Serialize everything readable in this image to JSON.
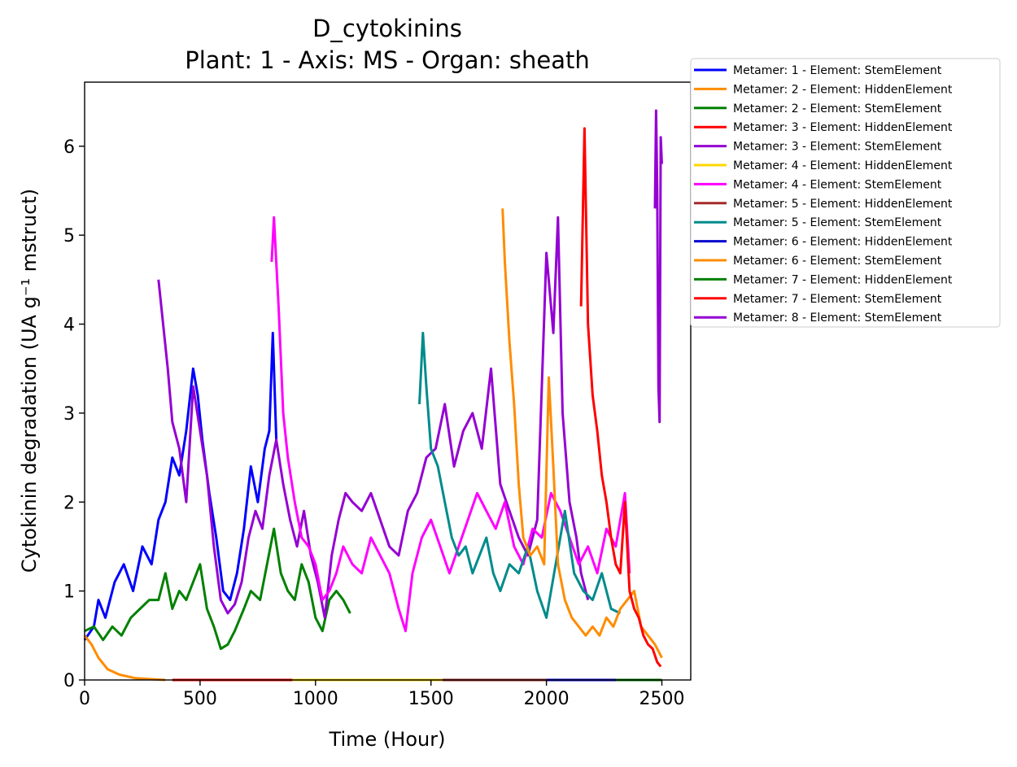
{
  "chart_data": {
    "type": "line",
    "title": "D_cytokinins",
    "subtitle": "Plant: 1 - Axis: MS - Organ: sheath",
    "xlabel": "Time (Hour)",
    "ylabel": "Cytokinin degradation (UA g⁻¹ mstruct)",
    "xlim": [
      0,
      2625
    ],
    "ylim": [
      0,
      6.72
    ],
    "xticks": [
      0,
      500,
      1000,
      1500,
      2000,
      2500
    ],
    "yticks": [
      0,
      1,
      2,
      3,
      4,
      5,
      6
    ],
    "grid": false,
    "legend_position": "outside-right",
    "series": [
      {
        "name": "Metamer: 1 - Element: StemElement",
        "color": "#0000ff",
        "points": [
          [
            0,
            0.45
          ],
          [
            40,
            0.6
          ],
          [
            60,
            0.9
          ],
          [
            90,
            0.7
          ],
          [
            130,
            1.1
          ],
          [
            170,
            1.3
          ],
          [
            210,
            1.0
          ],
          [
            250,
            1.5
          ],
          [
            290,
            1.3
          ],
          [
            320,
            1.8
          ],
          [
            350,
            2.0
          ],
          [
            380,
            2.5
          ],
          [
            410,
            2.3
          ],
          [
            440,
            2.8
          ],
          [
            470,
            3.5
          ],
          [
            490,
            3.2
          ],
          [
            510,
            2.7
          ],
          [
            540,
            2.1
          ],
          [
            570,
            1.6
          ],
          [
            600,
            1.0
          ],
          [
            630,
            0.9
          ],
          [
            660,
            1.2
          ],
          [
            690,
            1.7
          ],
          [
            720,
            2.4
          ],
          [
            750,
            2.0
          ],
          [
            780,
            2.6
          ],
          [
            800,
            2.8
          ],
          [
            815,
            3.9
          ],
          [
            830,
            2.7
          ]
        ]
      },
      {
        "name": "Metamer: 2 - Element: HiddenElement",
        "color": "#ff8c00",
        "points": [
          [
            0,
            0.5
          ],
          [
            30,
            0.4
          ],
          [
            60,
            0.25
          ],
          [
            100,
            0.12
          ],
          [
            150,
            0.06
          ],
          [
            220,
            0.02
          ],
          [
            280,
            0.01
          ],
          [
            350,
            0.0
          ]
        ]
      },
      {
        "name": "Metamer: 2 - Element: StemElement",
        "color": "#008000",
        "points": [
          [
            0,
            0.55
          ],
          [
            40,
            0.6
          ],
          [
            80,
            0.45
          ],
          [
            120,
            0.6
          ],
          [
            160,
            0.5
          ],
          [
            200,
            0.7
          ],
          [
            240,
            0.8
          ],
          [
            280,
            0.9
          ],
          [
            320,
            0.9
          ],
          [
            350,
            1.2
          ],
          [
            380,
            0.8
          ],
          [
            410,
            1.0
          ],
          [
            440,
            0.9
          ],
          [
            470,
            1.1
          ],
          [
            500,
            1.3
          ],
          [
            530,
            0.8
          ],
          [
            560,
            0.6
          ],
          [
            590,
            0.35
          ],
          [
            620,
            0.4
          ],
          [
            650,
            0.55
          ],
          [
            690,
            0.8
          ],
          [
            720,
            1.0
          ],
          [
            760,
            0.9
          ],
          [
            790,
            1.3
          ],
          [
            820,
            1.7
          ],
          [
            850,
            1.2
          ],
          [
            880,
            1.0
          ],
          [
            910,
            0.9
          ],
          [
            940,
            1.3
          ],
          [
            970,
            1.1
          ],
          [
            1000,
            0.7
          ],
          [
            1030,
            0.55
          ],
          [
            1060,
            0.9
          ],
          [
            1090,
            1.0
          ],
          [
            1120,
            0.9
          ],
          [
            1150,
            0.75
          ]
        ]
      },
      {
        "name": "Metamer: 3 - Element: HiddenElement",
        "color": "#ff0000",
        "points": [
          [
            380,
            0.0
          ],
          [
            900,
            0.0
          ]
        ]
      },
      {
        "name": "Metamer: 3 - Element: StemElement",
        "color": "#9400d3",
        "points": [
          [
            320,
            4.5
          ],
          [
            340,
            4.0
          ],
          [
            360,
            3.5
          ],
          [
            380,
            2.9
          ],
          [
            410,
            2.6
          ],
          [
            440,
            2.0
          ],
          [
            470,
            3.3
          ],
          [
            500,
            2.8
          ],
          [
            530,
            2.3
          ],
          [
            560,
            1.5
          ],
          [
            590,
            0.9
          ],
          [
            620,
            0.75
          ],
          [
            650,
            0.85
          ],
          [
            680,
            1.1
          ],
          [
            710,
            1.6
          ],
          [
            740,
            1.9
          ],
          [
            770,
            1.7
          ],
          [
            800,
            2.3
          ],
          [
            830,
            2.7
          ],
          [
            860,
            2.2
          ],
          [
            890,
            1.8
          ],
          [
            920,
            1.5
          ],
          [
            950,
            1.9
          ],
          [
            980,
            1.4
          ],
          [
            1010,
            1.1
          ],
          [
            1040,
            0.7
          ],
          [
            1070,
            1.4
          ],
          [
            1100,
            1.8
          ],
          [
            1130,
            2.1
          ],
          [
            1160,
            2.0
          ],
          [
            1200,
            1.9
          ],
          [
            1240,
            2.1
          ],
          [
            1280,
            1.8
          ],
          [
            1320,
            1.5
          ],
          [
            1360,
            1.4
          ],
          [
            1400,
            1.9
          ],
          [
            1440,
            2.1
          ],
          [
            1480,
            2.5
          ],
          [
            1520,
            2.6
          ],
          [
            1560,
            3.1
          ],
          [
            1600,
            2.4
          ],
          [
            1640,
            2.8
          ],
          [
            1680,
            3.0
          ],
          [
            1720,
            2.6
          ],
          [
            1760,
            3.5
          ],
          [
            1800,
            2.2
          ],
          [
            1840,
            1.9
          ],
          [
            1880,
            1.6
          ],
          [
            1920,
            1.4
          ],
          [
            1960,
            1.8
          ],
          [
            2000,
            4.8
          ],
          [
            2030,
            3.9
          ],
          [
            2050,
            5.2
          ],
          [
            2070,
            3.0
          ],
          [
            2100,
            2.0
          ],
          [
            2130,
            1.6
          ],
          [
            2150,
            1.2
          ],
          [
            2180,
            0.9
          ]
        ]
      },
      {
        "name": "Metamer: 4 - Element: HiddenElement",
        "color": "#ffd700",
        "points": [
          [
            900,
            0.0
          ],
          [
            1550,
            0.0
          ]
        ]
      },
      {
        "name": "Metamer: 4 - Element: StemElement",
        "color": "#ff00ff",
        "points": [
          [
            810,
            4.7
          ],
          [
            820,
            5.2
          ],
          [
            840,
            4.2
          ],
          [
            860,
            3.0
          ],
          [
            880,
            2.5
          ],
          [
            910,
            2.0
          ],
          [
            940,
            1.6
          ],
          [
            970,
            1.5
          ],
          [
            1000,
            1.3
          ],
          [
            1030,
            0.9
          ],
          [
            1060,
            1.0
          ],
          [
            1090,
            1.2
          ],
          [
            1120,
            1.5
          ],
          [
            1160,
            1.3
          ],
          [
            1200,
            1.2
          ],
          [
            1240,
            1.6
          ],
          [
            1280,
            1.4
          ],
          [
            1320,
            1.2
          ],
          [
            1360,
            0.8
          ],
          [
            1390,
            0.55
          ],
          [
            1420,
            1.2
          ],
          [
            1460,
            1.6
          ],
          [
            1500,
            1.8
          ],
          [
            1540,
            1.5
          ],
          [
            1580,
            1.2
          ],
          [
            1620,
            1.5
          ],
          [
            1660,
            1.8
          ],
          [
            1700,
            2.1
          ],
          [
            1740,
            1.9
          ],
          [
            1780,
            1.7
          ],
          [
            1820,
            2.0
          ],
          [
            1860,
            1.5
          ],
          [
            1900,
            1.3
          ],
          [
            1940,
            1.7
          ],
          [
            1980,
            1.6
          ],
          [
            2020,
            2.1
          ],
          [
            2060,
            1.9
          ],
          [
            2100,
            1.6
          ],
          [
            2140,
            1.3
          ],
          [
            2180,
            1.5
          ],
          [
            2220,
            1.2
          ],
          [
            2260,
            1.7
          ],
          [
            2300,
            1.5
          ],
          [
            2340,
            2.1
          ],
          [
            2360,
            1.2
          ]
        ]
      },
      {
        "name": "Metamer: 5 - Element: HiddenElement",
        "color": "#a52a2a",
        "points": [
          [
            1550,
            0.0
          ],
          [
            2000,
            0.0
          ]
        ]
      },
      {
        "name": "Metamer: 5 - Element: StemElement",
        "color": "#008b8b",
        "points": [
          [
            1450,
            3.1
          ],
          [
            1465,
            3.9
          ],
          [
            1480,
            3.3
          ],
          [
            1500,
            2.6
          ],
          [
            1530,
            2.4
          ],
          [
            1560,
            2.0
          ],
          [
            1590,
            1.6
          ],
          [
            1620,
            1.4
          ],
          [
            1650,
            1.5
          ],
          [
            1680,
            1.2
          ],
          [
            1710,
            1.4
          ],
          [
            1740,
            1.6
          ],
          [
            1770,
            1.2
          ],
          [
            1800,
            1.0
          ],
          [
            1840,
            1.3
          ],
          [
            1880,
            1.2
          ],
          [
            1920,
            1.5
          ],
          [
            1960,
            1.0
          ],
          [
            2000,
            0.7
          ],
          [
            2040,
            1.3
          ],
          [
            2080,
            1.9
          ],
          [
            2120,
            1.2
          ],
          [
            2160,
            1.0
          ],
          [
            2200,
            0.9
          ],
          [
            2240,
            1.2
          ],
          [
            2280,
            0.8
          ],
          [
            2320,
            0.75
          ]
        ]
      },
      {
        "name": "Metamer: 6 - Element: HiddenElement",
        "color": "#0000cd",
        "points": [
          [
            2000,
            0.0
          ],
          [
            2500,
            0.0
          ]
        ]
      },
      {
        "name": "Metamer: 6 - Element: StemElement",
        "color": "#ff8c00",
        "points": [
          [
            1810,
            5.3
          ],
          [
            1820,
            4.7
          ],
          [
            1840,
            3.8
          ],
          [
            1860,
            3.1
          ],
          [
            1880,
            2.2
          ],
          [
            1900,
            1.6
          ],
          [
            1930,
            1.4
          ],
          [
            1960,
            1.5
          ],
          [
            1990,
            1.3
          ],
          [
            2010,
            3.4
          ],
          [
            2030,
            2.4
          ],
          [
            2050,
            1.3
          ],
          [
            2080,
            0.9
          ],
          [
            2110,
            0.7
          ],
          [
            2140,
            0.6
          ],
          [
            2170,
            0.5
          ],
          [
            2200,
            0.6
          ],
          [
            2230,
            0.5
          ],
          [
            2260,
            0.7
          ],
          [
            2290,
            0.6
          ],
          [
            2320,
            0.8
          ],
          [
            2350,
            0.9
          ],
          [
            2380,
            1.0
          ],
          [
            2410,
            0.6
          ],
          [
            2440,
            0.5
          ],
          [
            2470,
            0.4
          ],
          [
            2500,
            0.25
          ]
        ]
      },
      {
        "name": "Metamer: 7 - Element: HiddenElement",
        "color": "#008000",
        "points": [
          [
            2300,
            0.0
          ],
          [
            2500,
            0.0
          ]
        ]
      },
      {
        "name": "Metamer: 7 - Element: StemElement",
        "color": "#ff0000",
        "points": [
          [
            2150,
            4.2
          ],
          [
            2165,
            6.2
          ],
          [
            2180,
            4.0
          ],
          [
            2200,
            3.2
          ],
          [
            2220,
            2.8
          ],
          [
            2240,
            2.3
          ],
          [
            2260,
            2.0
          ],
          [
            2280,
            1.6
          ],
          [
            2300,
            1.3
          ],
          [
            2320,
            1.2
          ],
          [
            2340,
            2.0
          ],
          [
            2360,
            1.0
          ],
          [
            2380,
            0.8
          ],
          [
            2400,
            0.7
          ],
          [
            2420,
            0.5
          ],
          [
            2440,
            0.4
          ],
          [
            2460,
            0.35
          ],
          [
            2480,
            0.2
          ],
          [
            2495,
            0.15
          ]
        ]
      },
      {
        "name": "Metamer: 8 - Element: StemElement",
        "color": "#9400d3",
        "points": [
          [
            2470,
            5.3
          ],
          [
            2475,
            6.4
          ],
          [
            2480,
            5.5
          ],
          [
            2485,
            3.3
          ],
          [
            2490,
            2.9
          ],
          [
            2495,
            6.1
          ],
          [
            2500,
            5.8
          ]
        ]
      }
    ]
  }
}
